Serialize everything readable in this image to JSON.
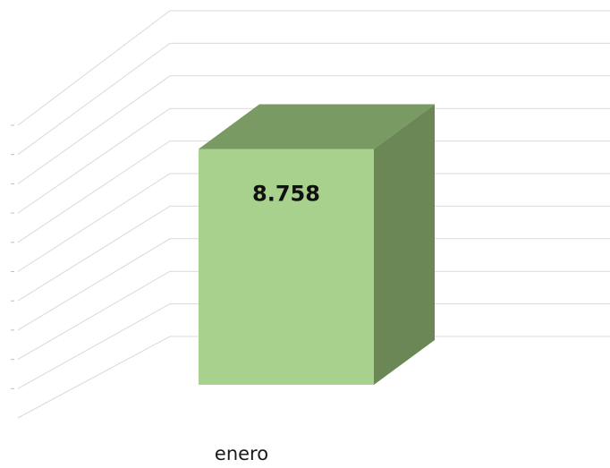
{
  "chart_data": {
    "type": "bar",
    "style": "3d-column",
    "categories": [
      "enero"
    ],
    "values": [
      8758
    ],
    "data_labels": [
      "8.758"
    ],
    "ylim": [
      0,
      12000
    ],
    "gridline_count": 10,
    "grid": true,
    "title": "",
    "xlabel": "",
    "ylabel": "",
    "colors": {
      "front": "#a9d18e",
      "top": "#7a9a63",
      "side": "#6b8756",
      "grid": "#d9d9d9"
    }
  }
}
